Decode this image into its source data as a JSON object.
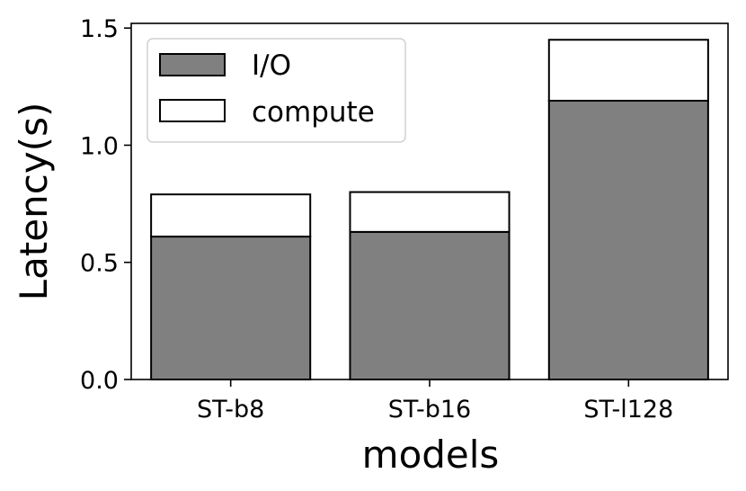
{
  "chart_data": {
    "type": "bar",
    "stacked": true,
    "categories": [
      "ST-b8",
      "ST-b16",
      "ST-l128"
    ],
    "series": [
      {
        "name": "I/O",
        "values": [
          0.61,
          0.63,
          1.19
        ],
        "color": "#808080"
      },
      {
        "name": "compute",
        "values": [
          0.18,
          0.17,
          0.26
        ],
        "color": "#ffffff"
      }
    ],
    "xlabel": "models",
    "ylabel": "Latency(s)",
    "ylim": [
      0,
      1.52
    ],
    "yticks": [
      0.0,
      0.5,
      1.0,
      1.5
    ],
    "ytick_labels": [
      "0.0",
      "0.5",
      "1.0",
      "1.5"
    ],
    "legend_position": "top-left",
    "grid": false
  }
}
